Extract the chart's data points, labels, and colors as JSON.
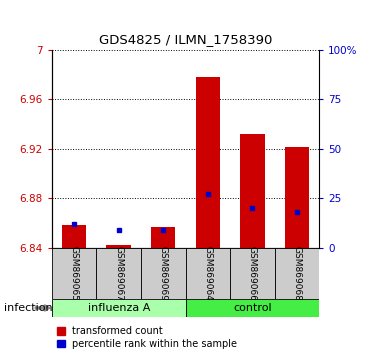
{
  "title": "GDS4825 / ILMN_1758390",
  "samples": [
    "GSM869065",
    "GSM869067",
    "GSM869069",
    "GSM869064",
    "GSM869066",
    "GSM869068"
  ],
  "ylim_left": [
    6.84,
    7.0
  ],
  "ylim_right": [
    0,
    100
  ],
  "yticks_left": [
    6.84,
    6.88,
    6.92,
    6.96,
    7.0
  ],
  "ytick_labels_left": [
    "6.84",
    "6.88",
    "6.92",
    "6.96",
    "7"
  ],
  "yticks_right": [
    0,
    25,
    50,
    75,
    100
  ],
  "ytick_labels_right": [
    "0",
    "25",
    "50",
    "75",
    "100%"
  ],
  "base_value": 6.84,
  "transformed_counts": [
    6.858,
    6.842,
    6.857,
    6.978,
    6.932,
    6.921
  ],
  "percentile_ranks": [
    12,
    9,
    9,
    27,
    20,
    18
  ],
  "left_color": "#cc0000",
  "right_color": "#0000cc",
  "bar_width": 0.55,
  "tick_label_color_left": "#cc0000",
  "tick_label_color_right": "#0000cc",
  "legend_labels": [
    "transformed count",
    "percentile rank within the sample"
  ],
  "group_labels": [
    "influenza A",
    "control"
  ],
  "group_colors": [
    "#aaffaa",
    "#44ee44"
  ],
  "infection_label": "infection"
}
